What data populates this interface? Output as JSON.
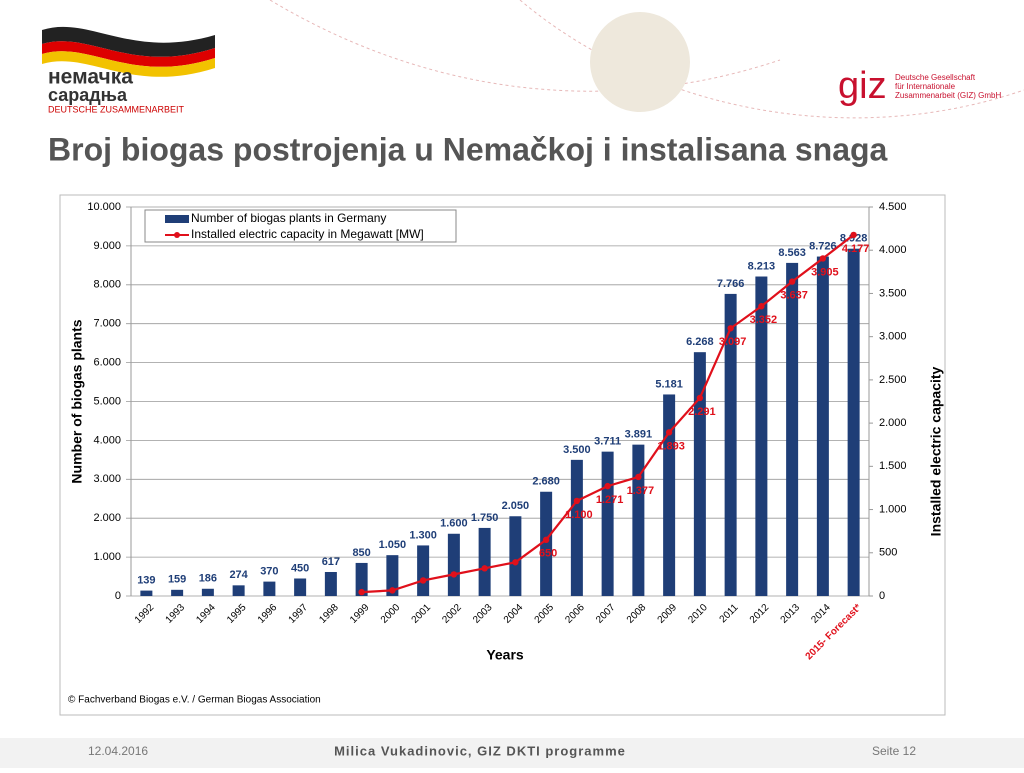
{
  "header": {
    "logo_line1": "немачка",
    "logo_line2": "сарадња",
    "logo_line3": "DEUTSCHE ZUSAMMENARBEIT",
    "giz": "giz",
    "giz_line1": "Deutsche Gesellschaft",
    "giz_line2": "für Internationale",
    "giz_line3": "Zusammenarbeit (GIZ) GmbH",
    "title": "Broj biogas postrojenja u Nemačkoj i instalisana snaga"
  },
  "footer": {
    "date": "12.04.2016",
    "author": "Milica Vukadinovic, GIZ DKTI programme",
    "page": "Seite 12"
  },
  "chart_data": {
    "type": "bar_line",
    "x_label": "Years",
    "y_label": "Number of biogas plants",
    "y2_label": "Installed electric capacity",
    "source": "© Fachverband Biogas e.V. / German  Biogas Association",
    "categories": [
      "1992",
      "1993",
      "1994",
      "1995",
      "1996",
      "1997",
      "1998",
      "1999",
      "2000",
      "2001",
      "2002",
      "2003",
      "2004",
      "2005",
      "2006",
      "2007",
      "2008",
      "2009",
      "2010",
      "2011",
      "2012",
      "2013",
      "2014",
      "2015- Forecast*"
    ],
    "series": [
      {
        "name": "Number of biogas plants in Germany",
        "color": "#1f3e77",
        "type": "bar",
        "values": [
          139,
          159,
          186,
          274,
          370,
          450,
          617,
          850,
          1050,
          1300,
          1600,
          1750,
          2050,
          2680,
          3500,
          3711,
          3891,
          5181,
          6268,
          7766,
          8213,
          8563,
          8726,
          8928
        ],
        "value_labels": [
          "139",
          "159",
          "186",
          "274",
          "370",
          "450",
          "617",
          "850",
          "1.050",
          "1.300",
          "1.600",
          "1.750",
          "2.050",
          "2.680",
          "3.500",
          "3.711",
          "3.891",
          "5.181",
          "6.268",
          "7.766",
          "8.213",
          "8.563",
          "8.726",
          "8.928"
        ]
      },
      {
        "name": "Installed electric capacity in Megawatt [MW]",
        "color": "#e0101b",
        "type": "line",
        "axis": "y2",
        "values": [
          null,
          null,
          null,
          null,
          null,
          null,
          null,
          45,
          65,
          180,
          250,
          320,
          390,
          650,
          1100,
          1271,
          1377,
          1893,
          2291,
          3097,
          3352,
          3637,
          3905,
          4177
        ],
        "value_labels": [
          null,
          null,
          null,
          null,
          null,
          null,
          null,
          null,
          null,
          null,
          null,
          null,
          null,
          "650",
          "1.100",
          "1.271",
          "1.377",
          "1.893",
          "2.291",
          "3.097",
          "3.352",
          "3.637",
          "3.905",
          "4.177"
        ]
      }
    ],
    "ylim": [
      0,
      10000
    ],
    "yticks": [
      0,
      {
        "value": 1000,
        "label": "1.000"
      },
      {
        "value": 2000,
        "label": "2.000"
      },
      {
        "value": 3000,
        "label": "3.000"
      },
      {
        "value": 4000,
        "label": "4.000"
      },
      {
        "value": 5000,
        "label": "5.000"
      },
      {
        "value": 6000,
        "label": "6.000"
      },
      {
        "value": 7000,
        "label": "7.000"
      },
      {
        "value": 8000,
        "label": "8.000"
      },
      {
        "value": 9000,
        "label": "9.000"
      },
      {
        "value": 10000,
        "label": "10.000"
      }
    ],
    "y2lim": [
      0,
      4500
    ],
    "y2ticks": [
      0,
      500,
      {
        "value": 1000,
        "label": "1.000"
      },
      {
        "value": 1500,
        "label": "1.500"
      },
      {
        "value": 2000,
        "label": "2.000"
      },
      {
        "value": 2500,
        "label": "2.500"
      },
      {
        "value": 3000,
        "label": "3.000"
      },
      {
        "value": 3500,
        "label": "3.500"
      },
      {
        "value": 4000,
        "label": "4.000"
      },
      {
        "value": 4500,
        "label": "4.500"
      }
    ],
    "grid": true,
    "legend": "top-left"
  }
}
